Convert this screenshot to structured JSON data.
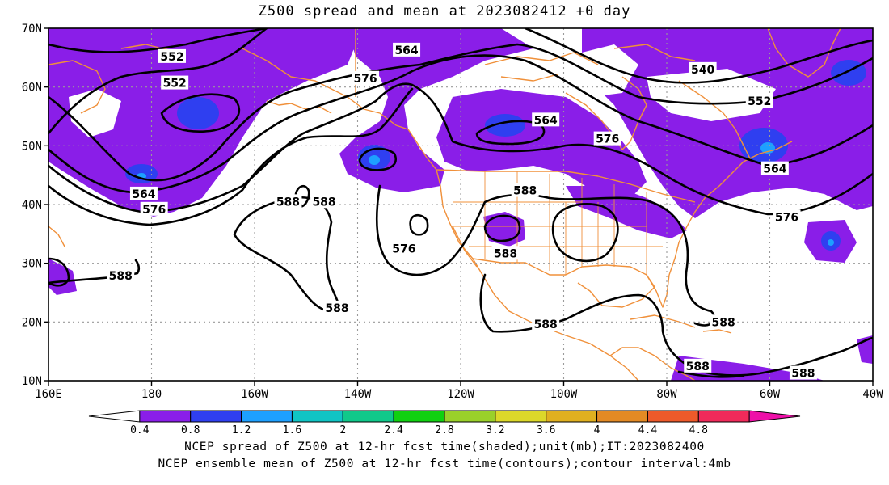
{
  "title": "Z500 spread and mean at 2023082412 +0 day",
  "captions": [
    "NCEP spread of Z500 at 12-hr fcst time(shaded);unit(mb);IT:2023082400",
    "NCEP ensemble mean of Z500 at 12-hr fcst time(contours);contour interval:4mb"
  ],
  "map": {
    "lon_range": [
      160,
      320
    ],
    "lat_range": [
      10,
      70
    ],
    "lat_ticks": [
      {
        "value": 70,
        "label": "70N"
      },
      {
        "value": 60,
        "label": "60N"
      },
      {
        "value": 50,
        "label": "50N"
      },
      {
        "value": 40,
        "label": "40N"
      },
      {
        "value": 30,
        "label": "30N"
      },
      {
        "value": 20,
        "label": "20N"
      },
      {
        "value": 10,
        "label": "10N"
      }
    ],
    "lon_ticks": [
      {
        "value": 160,
        "label": "160E"
      },
      {
        "value": 180,
        "label": "180"
      },
      {
        "value": 200,
        "label": "160W"
      },
      {
        "value": 220,
        "label": "140W"
      },
      {
        "value": 240,
        "label": "120W"
      },
      {
        "value": 260,
        "label": "100W"
      },
      {
        "value": 280,
        "label": "80W"
      },
      {
        "value": 300,
        "label": "60W"
      },
      {
        "value": 320,
        "label": "40W"
      }
    ],
    "grid": true,
    "colors": {
      "coast": "#f0903a",
      "contour": "#000000",
      "shade_main": "#8a1ee8",
      "shade_high": "#2f3ff0",
      "shade_peak": "#1da0ff"
    }
  },
  "colorbar": {
    "levels": [
      "0.4",
      "0.8",
      "1.2",
      "1.6",
      "2",
      "2.4",
      "2.8",
      "3.2",
      "3.6",
      "4",
      "4.4",
      "4.8"
    ],
    "colors": [
      "#ffffff",
      "#8a1ee8",
      "#2f3ff0",
      "#1da0ff",
      "#10c4c4",
      "#10c88a",
      "#10d010",
      "#9ad02a",
      "#dcd82a",
      "#e0b020",
      "#e38a24",
      "#ee5a2a",
      "#f02a5a",
      "#ee10a8"
    ]
  },
  "contour_labels": [
    {
      "text": "552",
      "lon": 184,
      "lat": 65.2
    },
    {
      "text": "552",
      "lon": 184.5,
      "lat": 60.7
    },
    {
      "text": "564",
      "lon": 229.5,
      "lat": 66.3
    },
    {
      "text": "576",
      "lon": 221.5,
      "lat": 61.5
    },
    {
      "text": "540",
      "lon": 287,
      "lat": 63
    },
    {
      "text": "552",
      "lon": 298,
      "lat": 57.6
    },
    {
      "text": "564",
      "lon": 256.5,
      "lat": 54.4
    },
    {
      "text": "576",
      "lon": 268.5,
      "lat": 51.2
    },
    {
      "text": "564",
      "lon": 301,
      "lat": 46.1
    },
    {
      "text": "576",
      "lon": 303.3,
      "lat": 37.9
    },
    {
      "text": "564",
      "lon": 178.5,
      "lat": 41.8
    },
    {
      "text": "576",
      "lon": 180.5,
      "lat": 39.2
    },
    {
      "text": "588",
      "lon": 206.5,
      "lat": 40.5
    },
    {
      "text": "588",
      "lon": 213.5,
      "lat": 40.5
    },
    {
      "text": "588",
      "lon": 252.5,
      "lat": 42.4
    },
    {
      "text": "576",
      "lon": 229,
      "lat": 32.5
    },
    {
      "text": "588",
      "lon": 248.7,
      "lat": 31.7
    },
    {
      "text": "588",
      "lon": 174,
      "lat": 27.9
    },
    {
      "text": "588",
      "lon": 216,
      "lat": 22.4
    },
    {
      "text": "588",
      "lon": 256.5,
      "lat": 19.6
    },
    {
      "text": "588",
      "lon": 291,
      "lat": 20.0
    },
    {
      "text": "588",
      "lon": 286,
      "lat": 12.5
    },
    {
      "text": "588",
      "lon": 306.5,
      "lat": 11.3
    }
  ]
}
